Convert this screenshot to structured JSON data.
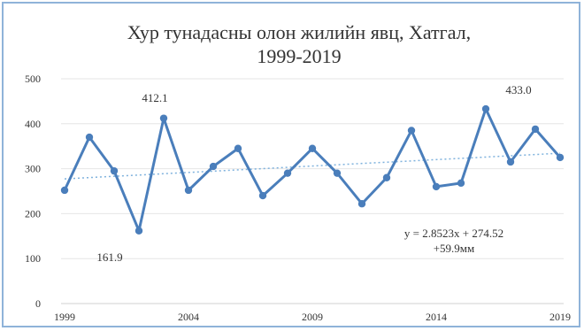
{
  "chart_data": {
    "type": "line",
    "title_line1": "Хур тунадасны олон жилийн явц, Хатгал,",
    "title_line2": "1999-2019",
    "xlabel": "",
    "ylabel": "",
    "x": [
      1999,
      2000,
      2001,
      2002,
      2003,
      2004,
      2005,
      2006,
      2007,
      2008,
      2009,
      2010,
      2011,
      2012,
      2013,
      2014,
      2015,
      2016,
      2017,
      2018,
      2019
    ],
    "values": [
      252,
      370,
      295,
      161.9,
      412.1,
      252,
      305,
      345,
      240,
      290,
      345,
      290,
      222,
      280,
      385,
      260,
      268,
      433.0,
      315,
      388,
      325
    ],
    "xlim": [
      1999,
      2019
    ],
    "ylim": [
      0,
      500
    ],
    "x_ticks": [
      "1999",
      "2004",
      "2009",
      "2014",
      "2019"
    ],
    "y_ticks": [
      "0",
      "100",
      "200",
      "300",
      "400",
      "500"
    ],
    "grid": "horizontal",
    "series_color": "#4a7ebb",
    "trend_color": "#7fb2dd",
    "trendline": {
      "slope": 2.8523,
      "intercept": 274.52
    },
    "annotations": {
      "max_label": "412.1",
      "min_label": "161.9",
      "max2_label": "433.0",
      "equation": "y = 2.8523x + 274.52",
      "trend_change": "+59.9мм"
    }
  }
}
